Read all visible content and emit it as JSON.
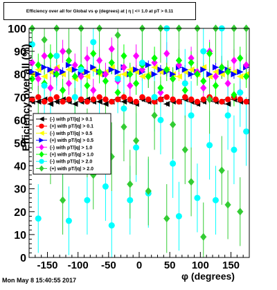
{
  "title": "Efficiency over all for Global vs φ (degrees) at | η | <= 1.0 at pT > 0.11",
  "xlabel": "φ (degrees)",
  "ylabel": "Efficiency over all (%)",
  "timestamp": "Mon May  8 15:40:55 2017",
  "chart_data": {
    "type": "scatter",
    "title": "Efficiency over all for Global vs φ (degrees) at | η | <= 1.0 at pT > 0.11",
    "xlabel": "φ (degrees)",
    "ylabel": "Efficiency over all (%)",
    "xlim": [
      -180,
      180
    ],
    "ylim": [
      0,
      100
    ],
    "x_ticks": [
      -150,
      -100,
      -50,
      0,
      50,
      100,
      150
    ],
    "y_ticks": [
      0,
      10,
      20,
      30,
      40,
      50,
      60,
      70,
      80,
      90,
      100
    ],
    "grid": false,
    "legend_position": "left-middle",
    "series": [
      {
        "name": "(-) with pT/|q| > 0.1",
        "color": "#000000",
        "marker": "triangle-left",
        "x": [
          -175,
          -165,
          -155,
          -145,
          -135,
          -125,
          -115,
          -105,
          -95,
          -85,
          -75,
          -65,
          -55,
          -45,
          -35,
          -25,
          -15,
          -5,
          5,
          15,
          25,
          35,
          45,
          55,
          65,
          75,
          85,
          95,
          105,
          115,
          125,
          135,
          145,
          155,
          165,
          175
        ],
        "y": [
          68,
          68,
          69,
          67,
          68,
          69,
          68,
          67,
          68,
          69,
          68,
          68,
          67,
          68,
          69,
          68,
          68,
          67,
          69,
          68,
          68,
          69,
          67,
          68,
          68,
          69,
          68,
          67,
          68,
          69,
          68,
          68,
          67,
          69,
          68,
          68
        ],
        "yerr": [
          1,
          1,
          1,
          1,
          1,
          1,
          1,
          1,
          1,
          1,
          1,
          1,
          1,
          1,
          1,
          1,
          1,
          1,
          1,
          1,
          1,
          1,
          1,
          1,
          1,
          1,
          1,
          1,
          1,
          1,
          1,
          1,
          1,
          1,
          1,
          1
        ]
      },
      {
        "name": "(+) with pT/|q| > 0.1",
        "color": "#ff0000",
        "marker": "circle",
        "x": [
          -175,
          -165,
          -155,
          -145,
          -135,
          -125,
          -115,
          -105,
          -95,
          -85,
          -75,
          -65,
          -55,
          -45,
          -35,
          -25,
          -15,
          -5,
          5,
          15,
          25,
          35,
          45,
          55,
          65,
          75,
          85,
          95,
          105,
          115,
          125,
          135,
          145,
          155,
          165,
          175
        ],
        "y": [
          69,
          70,
          68,
          69,
          70,
          68,
          69,
          70,
          69,
          68,
          69,
          70,
          69,
          68,
          69,
          70,
          69,
          68,
          70,
          69,
          68,
          69,
          70,
          69,
          68,
          70,
          69,
          68,
          69,
          70,
          69,
          68,
          69,
          70,
          69,
          68
        ],
        "yerr": [
          1,
          1,
          1,
          1,
          1,
          1,
          1,
          1,
          1,
          1,
          1,
          1,
          1,
          1,
          1,
          1,
          1,
          1,
          1,
          1,
          1,
          1,
          1,
          1,
          1,
          1,
          1,
          1,
          1,
          1,
          1,
          1,
          1,
          1,
          1,
          1
        ]
      },
      {
        "name": "(-) with pT/|q| > 0.5",
        "color": "#ffff00",
        "marker": "triangle-left",
        "x": [
          -175,
          -165,
          -155,
          -145,
          -135,
          -125,
          -115,
          -105,
          -95,
          -85,
          -75,
          -65,
          -55,
          -45,
          -35,
          -25,
          -15,
          -5,
          5,
          15,
          25,
          35,
          45,
          55,
          65,
          75,
          85,
          95,
          105,
          115,
          125,
          135,
          145,
          155,
          165,
          175
        ],
        "y": [
          80,
          82,
          79,
          81,
          83,
          80,
          82,
          78,
          81,
          79,
          82,
          80,
          81,
          83,
          79,
          80,
          82,
          81,
          79,
          80,
          83,
          81,
          82,
          80,
          79,
          81,
          82,
          80,
          83,
          79,
          81,
          80,
          82,
          81,
          79,
          80
        ],
        "yerr": [
          2,
          2,
          2,
          2,
          2,
          2,
          2,
          2,
          2,
          2,
          2,
          2,
          2,
          2,
          2,
          2,
          2,
          2,
          2,
          2,
          2,
          2,
          2,
          2,
          2,
          2,
          2,
          2,
          2,
          2,
          2,
          2,
          2,
          2,
          2,
          2
        ]
      },
      {
        "name": "(+) with pT/|q| > 0.5",
        "color": "#0000ff",
        "marker": "triangle-right",
        "x": [
          -175,
          -165,
          -155,
          -145,
          -135,
          -125,
          -115,
          -105,
          -95,
          -85,
          -75,
          -65,
          -55,
          -45,
          -35,
          -25,
          -15,
          -5,
          5,
          15,
          25,
          35,
          45,
          55,
          65,
          75,
          85,
          95,
          105,
          115,
          125,
          135,
          145,
          155,
          165,
          175
        ],
        "y": [
          81,
          80,
          83,
          82,
          80,
          81,
          84,
          82,
          80,
          81,
          83,
          81,
          80,
          82,
          81,
          83,
          80,
          82,
          81,
          84,
          80,
          82,
          81,
          80,
          83,
          82,
          80,
          81,
          82,
          80,
          83,
          81,
          82,
          80,
          81,
          83
        ],
        "yerr": [
          2,
          2,
          2,
          2,
          2,
          2,
          2,
          2,
          2,
          2,
          2,
          2,
          2,
          2,
          2,
          2,
          2,
          2,
          2,
          2,
          2,
          2,
          2,
          2,
          2,
          2,
          2,
          2,
          2,
          2,
          2,
          2,
          2,
          2,
          2,
          2
        ]
      },
      {
        "name": "(-) with pT/|q| > 1.0",
        "color": "#ff00ff",
        "marker": "diamond",
        "x": [
          -175,
          -165,
          -155,
          -145,
          -135,
          -125,
          -115,
          -105,
          -95,
          -85,
          -75,
          -65,
          -55,
          -45,
          -35,
          -25,
          -15,
          -5,
          5,
          15,
          25,
          35,
          45,
          55,
          65,
          75,
          85,
          95,
          105,
          115,
          125,
          135,
          145,
          155,
          165,
          175
        ],
        "y": [
          85,
          78,
          88,
          74,
          82,
          90,
          76,
          84,
          79,
          87,
          73,
          86,
          80,
          91,
          77,
          83,
          75,
          88,
          82,
          79,
          85,
          72,
          89,
          78,
          84,
          76,
          87,
          81,
          74,
          90,
          79,
          83,
          76,
          86,
          72,
          84
        ],
        "yerr": [
          5,
          5,
          5,
          5,
          5,
          5,
          5,
          5,
          5,
          5,
          5,
          5,
          5,
          5,
          5,
          5,
          5,
          5,
          5,
          5,
          5,
          5,
          5,
          5,
          5,
          5,
          5,
          5,
          5,
          5,
          5,
          5,
          5,
          5,
          5,
          5
        ]
      },
      {
        "name": "(+) with pT/|q| > 1.0",
        "color": "#00ff00",
        "marker": "diamond",
        "x": [
          -175,
          -165,
          -155,
          -145,
          -135,
          -125,
          -115,
          -105,
          -95,
          -85,
          -75,
          -65,
          -55,
          -45,
          -35,
          -25,
          -15,
          -5,
          5,
          15,
          25,
          35,
          45,
          55,
          65,
          75,
          85,
          95,
          105,
          115,
          125,
          135,
          145,
          155,
          165,
          175
        ],
        "y": [
          78,
          84,
          76,
          88,
          80,
          73,
          86,
          79,
          83,
          75,
          89,
          81,
          77,
          85,
          72,
          88,
          80,
          76,
          84,
          79,
          87,
          74,
          82,
          78,
          86,
          73,
          85,
          80,
          77,
          89,
          75,
          83,
          81,
          71,
          87,
          79
        ],
        "yerr": [
          5,
          5,
          5,
          5,
          5,
          5,
          5,
          5,
          5,
          5,
          5,
          5,
          5,
          5,
          5,
          5,
          5,
          5,
          5,
          5,
          5,
          5,
          5,
          5,
          5,
          5,
          5,
          5,
          5,
          5,
          5,
          5,
          5,
          5,
          5,
          5
        ]
      },
      {
        "name": "(-) with pT/|q| > 2.0",
        "color": "#00ffff",
        "marker": "circle",
        "x": [
          -175,
          -165,
          -155,
          -145,
          -135,
          -125,
          -115,
          -105,
          -95,
          -85,
          -75,
          -65,
          -55,
          -45,
          -35,
          -25,
          -15,
          -5,
          5,
          15,
          25,
          35,
          45,
          55,
          65,
          75,
          85,
          95,
          105,
          115,
          125,
          135,
          145,
          155,
          165,
          175
        ],
        "y": [
          93,
          17,
          75,
          60,
          88,
          40,
          16,
          70,
          82,
          25,
          94,
          55,
          31,
          14,
          78,
          65,
          25,
          48,
          85,
          28,
          70,
          60,
          100,
          41,
          18,
          76,
          62,
          26,
          90,
          49,
          25,
          100,
          62,
          47,
          72,
          55
        ],
        "yerr": [
          15,
          15,
          15,
          15,
          15,
          15,
          15,
          15,
          15,
          15,
          15,
          15,
          15,
          15,
          15,
          15,
          15,
          15,
          15,
          15,
          15,
          15,
          15,
          15,
          15,
          15,
          15,
          15,
          15,
          15,
          15,
          15,
          15,
          15,
          15,
          15
        ]
      },
      {
        "name": "(+) with pT/|q| > 2.0",
        "color": "#33cc33",
        "marker": "diamond",
        "x": [
          -175,
          -165,
          -155,
          -145,
          -135,
          -125,
          -115,
          -105,
          -95,
          -85,
          -75,
          -65,
          -55,
          -45,
          -35,
          -25,
          -15,
          -5,
          5,
          15,
          25,
          35,
          45,
          55,
          65,
          75,
          85,
          95,
          105,
          115,
          125,
          135,
          145,
          155,
          165,
          175
        ],
        "y": [
          100,
          60,
          95,
          47,
          100,
          25,
          90,
          59,
          100,
          50,
          36,
          100,
          60,
          44,
          97,
          57,
          32,
          51,
          100,
          29,
          62,
          100,
          17,
          58,
          100,
          47,
          33,
          100,
          9,
          69,
          100,
          38,
          23,
          100,
          20,
          100
        ],
        "yerr": [
          15,
          15,
          15,
          15,
          15,
          15,
          15,
          15,
          15,
          15,
          15,
          15,
          15,
          15,
          15,
          15,
          15,
          15,
          15,
          15,
          15,
          15,
          15,
          15,
          15,
          15,
          15,
          15,
          15,
          15,
          15,
          15,
          15,
          15,
          15,
          15
        ]
      }
    ]
  }
}
